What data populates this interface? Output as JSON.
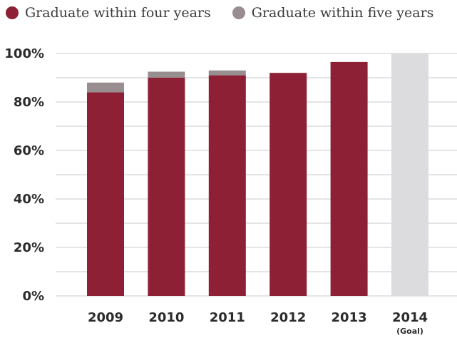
{
  "chart_data": {
    "type": "bar",
    "stacked": true,
    "categories": [
      "2009",
      "2010",
      "2011",
      "2012",
      "2013",
      "2014"
    ],
    "category_sublabels": [
      "",
      "",
      "",
      "",
      "",
      "(Goal)"
    ],
    "series": [
      {
        "name": "Graduate within four years",
        "color": "#8d2035",
        "values": [
          84,
          90,
          91,
          92,
          96.5,
          null
        ]
      },
      {
        "name": "Graduate within five years",
        "color": "#988d8f",
        "values": [
          4,
          2.5,
          2,
          0,
          0,
          null
        ]
      }
    ],
    "goal": {
      "category": "2014",
      "value": 100,
      "color": "#dcdcde"
    },
    "y_ticks": [
      "0%",
      "20%",
      "40%",
      "60%",
      "80%",
      "100%"
    ],
    "ylim": [
      0,
      100
    ],
    "grid": true,
    "legend_position": "top-left",
    "title": "",
    "xlabel": "",
    "ylabel": ""
  }
}
